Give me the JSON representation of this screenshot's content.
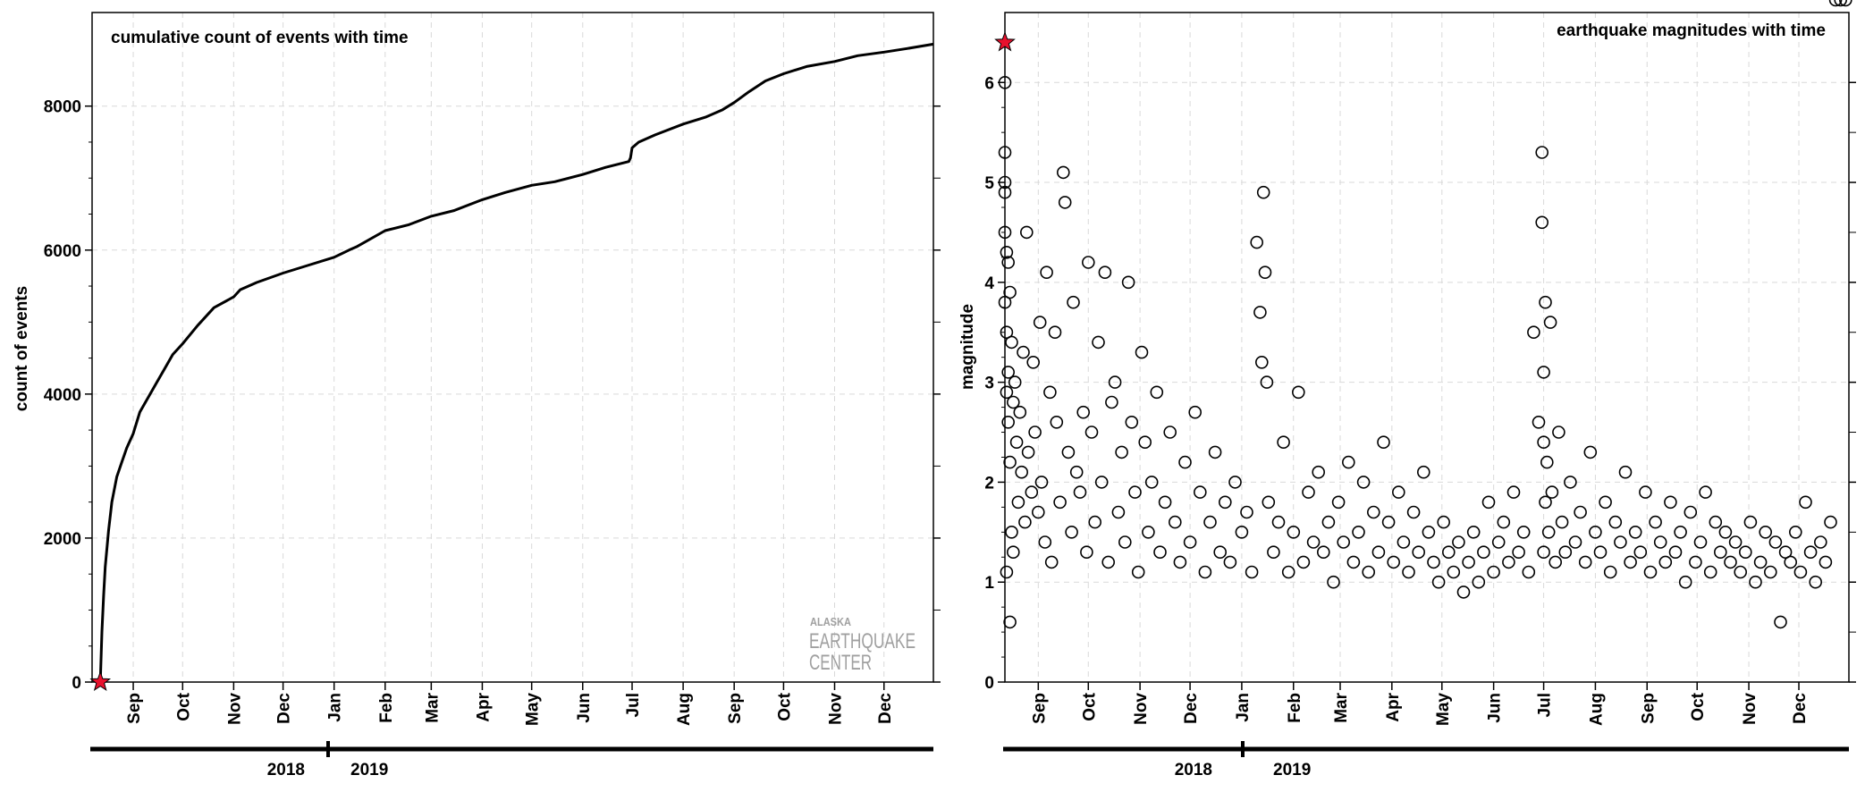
{
  "colors": {
    "line": "#000000",
    "grid": "#d9d9d9",
    "star": "#e8112d",
    "logo": "#a0a0a0",
    "background": "#ffffff"
  },
  "logo": {
    "line1": "ALASKA",
    "line2": "EARTHQUAKE",
    "line3": "CENTER"
  },
  "year_axis": {
    "left_year": "2018",
    "right_year": "2019"
  },
  "chart_data": [
    {
      "type": "line",
      "title": "cumulative count of events with time",
      "xlabel": "",
      "ylabel": "count of events",
      "xlim": [
        "2018-08-07",
        "2019-12-31"
      ],
      "ylim": [
        0,
        9300
      ],
      "yticks": [
        0,
        2000,
        4000,
        6000,
        8000
      ],
      "month_ticks": [
        {
          "date": "2018-09-01",
          "label": "Sep"
        },
        {
          "date": "2018-10-01",
          "label": "Oct"
        },
        {
          "date": "2018-11-01",
          "label": "Nov"
        },
        {
          "date": "2018-12-01",
          "label": "Dec"
        },
        {
          "date": "2019-01-01",
          "label": "Jan"
        },
        {
          "date": "2019-02-01",
          "label": "Feb"
        },
        {
          "date": "2019-03-01",
          "label": "Mar"
        },
        {
          "date": "2019-04-01",
          "label": "Apr"
        },
        {
          "date": "2019-05-01",
          "label": "May"
        },
        {
          "date": "2019-06-01",
          "label": "Jun"
        },
        {
          "date": "2019-07-01",
          "label": "Jul"
        },
        {
          "date": "2019-08-01",
          "label": "Aug"
        },
        {
          "date": "2019-09-01",
          "label": "Sep"
        },
        {
          "date": "2019-10-01",
          "label": "Oct"
        },
        {
          "date": "2019-11-01",
          "label": "Nov"
        },
        {
          "date": "2019-12-01",
          "label": "Dec"
        }
      ],
      "grid": true,
      "mainshock": {
        "x": "2018-08-12",
        "y": 0
      },
      "series": [
        {
          "x": [
            "2018-08-12",
            "2018-08-13",
            "2018-08-14",
            "2018-08-15",
            "2018-08-17",
            "2018-08-19",
            "2018-08-22",
            "2018-08-25",
            "2018-08-28",
            "2018-09-01",
            "2018-09-05",
            "2018-09-10",
            "2018-09-15",
            "2018-09-20",
            "2018-09-25",
            "2018-10-01",
            "2018-10-10",
            "2018-10-20",
            "2018-11-01",
            "2018-11-05",
            "2018-11-15",
            "2018-12-01",
            "2018-12-15",
            "2019-01-01",
            "2019-01-10",
            "2019-01-15",
            "2019-02-01",
            "2019-02-15",
            "2019-03-01",
            "2019-03-15",
            "2019-04-01",
            "2019-04-15",
            "2019-05-01",
            "2019-05-15",
            "2019-06-01",
            "2019-06-15",
            "2019-06-29",
            "2019-06-30",
            "2019-07-01",
            "2019-07-05",
            "2019-07-15",
            "2019-08-01",
            "2019-08-15",
            "2019-08-25",
            "2019-09-01",
            "2019-09-10",
            "2019-09-20",
            "2019-10-01",
            "2019-10-15",
            "2019-11-01",
            "2019-11-15",
            "2019-12-01",
            "2019-12-15",
            "2019-12-31"
          ],
          "y": [
            0,
            700,
            1200,
            1600,
            2100,
            2500,
            2850,
            3050,
            3250,
            3450,
            3750,
            3950,
            4150,
            4350,
            4550,
            4700,
            4950,
            5200,
            5350,
            5450,
            5550,
            5680,
            5780,
            5900,
            6000,
            6050,
            6270,
            6350,
            6470,
            6550,
            6700,
            6800,
            6900,
            6950,
            7050,
            7150,
            7230,
            7280,
            7420,
            7500,
            7600,
            7750,
            7850,
            7950,
            8050,
            8200,
            8350,
            8450,
            8550,
            8620,
            8700,
            8750,
            8800,
            8860
          ]
        }
      ]
    },
    {
      "type": "scatter",
      "title": "earthquake magnitudes with time",
      "xlabel": "",
      "ylabel": "magnitude",
      "xlim": [
        "2018-08-12",
        "2019-12-31"
      ],
      "ylim": [
        0,
        6.7
      ],
      "yticks": [
        0,
        1,
        2,
        3,
        4,
        5,
        6
      ],
      "month_ticks": [
        {
          "date": "2018-09-01",
          "label": "Sep"
        },
        {
          "date": "2018-10-01",
          "label": "Oct"
        },
        {
          "date": "2018-11-01",
          "label": "Nov"
        },
        {
          "date": "2018-12-01",
          "label": "Dec"
        },
        {
          "date": "2019-01-01",
          "label": "Jan"
        },
        {
          "date": "2019-02-01",
          "label": "Feb"
        },
        {
          "date": "2019-03-01",
          "label": "Mar"
        },
        {
          "date": "2019-04-01",
          "label": "Apr"
        },
        {
          "date": "2019-05-01",
          "label": "May"
        },
        {
          "date": "2019-06-01",
          "label": "Jun"
        },
        {
          "date": "2019-07-01",
          "label": "Jul"
        },
        {
          "date": "2019-08-01",
          "label": "Aug"
        },
        {
          "date": "2019-09-01",
          "label": "Sep"
        },
        {
          "date": "2019-10-01",
          "label": "Oct"
        },
        {
          "date": "2019-11-01",
          "label": "Nov"
        },
        {
          "date": "2019-12-01",
          "label": "Dec"
        }
      ],
      "grid": true,
      "mainshock": {
        "x": "2018-08-12",
        "magnitude": 6.4
      },
      "marker": "open-circle",
      "series": [
        {
          "x": [
            "2018-08-12",
            "2018-08-12",
            "2018-08-12",
            "2018-08-12",
            "2018-08-12",
            "2018-08-12",
            "2018-08-13",
            "2018-08-13",
            "2018-08-13",
            "2018-08-13",
            "2018-08-14",
            "2018-08-14",
            "2018-08-14",
            "2018-08-15",
            "2018-08-15",
            "2018-08-15",
            "2018-08-16",
            "2018-08-16",
            "2018-08-17",
            "2018-08-17",
            "2018-08-18",
            "2018-08-19",
            "2018-08-20",
            "2018-08-21",
            "2018-08-22",
            "2018-08-23",
            "2018-08-24",
            "2018-08-25",
            "2018-08-26",
            "2018-08-28",
            "2018-08-29",
            "2018-08-30",
            "2018-09-01",
            "2018-09-02",
            "2018-09-03",
            "2018-09-05",
            "2018-09-06",
            "2018-09-08",
            "2018-09-09",
            "2018-09-11",
            "2018-09-12",
            "2018-09-14",
            "2018-09-16",
            "2018-09-17",
            "2018-09-19",
            "2018-09-21",
            "2018-09-22",
            "2018-09-24",
            "2018-09-26",
            "2018-09-28",
            "2018-09-30",
            "2018-10-01",
            "2018-10-03",
            "2018-10-05",
            "2018-10-07",
            "2018-10-09",
            "2018-10-11",
            "2018-10-13",
            "2018-10-15",
            "2018-10-17",
            "2018-10-19",
            "2018-10-21",
            "2018-10-23",
            "2018-10-25",
            "2018-10-27",
            "2018-10-29",
            "2018-10-31",
            "2018-11-02",
            "2018-11-04",
            "2018-11-06",
            "2018-11-08",
            "2018-11-11",
            "2018-11-13",
            "2018-11-16",
            "2018-11-19",
            "2018-11-22",
            "2018-11-25",
            "2018-11-28",
            "2018-12-01",
            "2018-12-04",
            "2018-12-07",
            "2018-12-10",
            "2018-12-13",
            "2018-12-16",
            "2018-12-19",
            "2018-12-22",
            "2018-12-25",
            "2018-12-28",
            "2019-01-01",
            "2019-01-04",
            "2019-01-07",
            "2019-01-10",
            "2019-01-12",
            "2019-01-13",
            "2019-01-14",
            "2019-01-15",
            "2019-01-16",
            "2019-01-17",
            "2019-01-20",
            "2019-01-23",
            "2019-01-26",
            "2019-01-29",
            "2019-02-01",
            "2019-02-04",
            "2019-02-07",
            "2019-02-10",
            "2019-02-13",
            "2019-02-16",
            "2019-02-19",
            "2019-02-22",
            "2019-02-25",
            "2019-02-28",
            "2019-03-03",
            "2019-03-06",
            "2019-03-09",
            "2019-03-12",
            "2019-03-15",
            "2019-03-18",
            "2019-03-21",
            "2019-03-24",
            "2019-03-27",
            "2019-03-30",
            "2019-04-02",
            "2019-04-05",
            "2019-04-08",
            "2019-04-11",
            "2019-04-14",
            "2019-04-17",
            "2019-04-20",
            "2019-04-23",
            "2019-04-26",
            "2019-04-29",
            "2019-05-02",
            "2019-05-05",
            "2019-05-08",
            "2019-05-11",
            "2019-05-14",
            "2019-05-17",
            "2019-05-20",
            "2019-05-23",
            "2019-05-26",
            "2019-05-29",
            "2019-06-01",
            "2019-06-04",
            "2019-06-07",
            "2019-06-10",
            "2019-06-13",
            "2019-06-16",
            "2019-06-19",
            "2019-06-22",
            "2019-06-25",
            "2019-06-28",
            "2019-06-30",
            "2019-06-30",
            "2019-07-01",
            "2019-07-01",
            "2019-07-01",
            "2019-07-02",
            "2019-07-02",
            "2019-07-03",
            "2019-07-04",
            "2019-07-05",
            "2019-07-06",
            "2019-07-08",
            "2019-07-10",
            "2019-07-12",
            "2019-07-14",
            "2019-07-17",
            "2019-07-20",
            "2019-07-23",
            "2019-07-26",
            "2019-07-29",
            "2019-08-01",
            "2019-08-04",
            "2019-08-07",
            "2019-08-10",
            "2019-08-13",
            "2019-08-16",
            "2019-08-19",
            "2019-08-22",
            "2019-08-25",
            "2019-08-28",
            "2019-08-31",
            "2019-09-03",
            "2019-09-06",
            "2019-09-09",
            "2019-09-12",
            "2019-09-15",
            "2019-09-18",
            "2019-09-21",
            "2019-09-24",
            "2019-09-27",
            "2019-09-30",
            "2019-10-03",
            "2019-10-06",
            "2019-10-09",
            "2019-10-12",
            "2019-10-15",
            "2019-10-18",
            "2019-10-21",
            "2019-10-24",
            "2019-10-27",
            "2019-10-30",
            "2019-11-02",
            "2019-11-05",
            "2019-11-08",
            "2019-11-11",
            "2019-11-14",
            "2019-11-17",
            "2019-11-20",
            "2019-11-23",
            "2019-11-26",
            "2019-11-29",
            "2019-12-02",
            "2019-12-05",
            "2019-12-08",
            "2019-12-11",
            "2019-12-14",
            "2019-12-17",
            "2019-12-20",
            "2019-12-23",
            "2019-12-26",
            "2019-12-29"
          ],
          "magnitude": [
            6.0,
            5.3,
            5.0,
            4.9,
            4.5,
            3.8,
            4.3,
            3.5,
            2.9,
            1.1,
            4.2,
            3.1,
            2.6,
            0.6,
            3.9,
            2.2,
            1.5,
            3.4,
            2.8,
            1.3,
            3.0,
            2.4,
            1.8,
            2.7,
            2.1,
            3.3,
            1.6,
            4.5,
            2.3,
            1.9,
            3.2,
            2.5,
            1.7,
            3.6,
            2.0,
            1.4,
            4.1,
            2.9,
            1.2,
            3.5,
            2.6,
            1.8,
            5.1,
            4.8,
            2.3,
            1.5,
            3.8,
            2.1,
            1.9,
            2.7,
            1.3,
            4.2,
            2.5,
            1.6,
            3.4,
            2.0,
            4.1,
            1.2,
            2.8,
            3.0,
            1.7,
            2.3,
            1.4,
            4.0,
            2.6,
            1.9,
            1.1,
            3.3,
            2.4,
            1.5,
            2.0,
            2.9,
            1.3,
            1.8,
            2.5,
            1.6,
            1.2,
            2.2,
            1.4,
            2.7,
            1.9,
            1.1,
            1.6,
            2.3,
            1.3,
            1.8,
            1.2,
            2.0,
            1.5,
            1.7,
            1.1,
            4.4,
            3.7,
            3.2,
            4.9,
            4.1,
            3.0,
            1.8,
            1.3,
            1.6,
            2.4,
            1.1,
            1.5,
            2.9,
            1.2,
            1.9,
            1.4,
            2.1,
            1.3,
            1.6,
            1.0,
            1.8,
            1.4,
            2.2,
            1.2,
            1.5,
            2.0,
            1.1,
            1.7,
            1.3,
            2.4,
            1.6,
            1.2,
            1.9,
            1.4,
            1.1,
            1.7,
            1.3,
            2.1,
            1.5,
            1.2,
            1.0,
            1.6,
            1.3,
            1.1,
            1.4,
            0.9,
            1.2,
            1.5,
            1.0,
            1.3,
            1.8,
            1.1,
            1.4,
            1.6,
            1.2,
            1.9,
            1.3,
            1.5,
            1.1,
            3.5,
            2.6,
            5.3,
            4.6,
            3.1,
            2.4,
            1.3,
            3.8,
            1.8,
            2.2,
            1.5,
            3.6,
            1.9,
            1.2,
            2.5,
            1.6,
            1.3,
            2.0,
            1.4,
            1.7,
            1.2,
            2.3,
            1.5,
            1.3,
            1.8,
            1.1,
            1.6,
            1.4,
            2.1,
            1.2,
            1.5,
            1.3,
            1.9,
            1.1,
            1.6,
            1.4,
            1.2,
            1.8,
            1.3,
            1.5,
            1.0,
            1.7,
            1.2,
            1.4,
            1.9,
            1.1,
            1.6,
            1.3,
            1.5,
            1.2,
            1.4,
            1.1,
            1.3,
            1.6,
            1.0,
            1.2,
            1.5,
            1.1,
            1.4,
            0.6,
            1.3,
            1.2,
            1.5,
            1.1,
            1.8,
            1.3,
            1.0,
            1.4,
            1.2,
            1.6
          ]
        }
      ]
    }
  ]
}
